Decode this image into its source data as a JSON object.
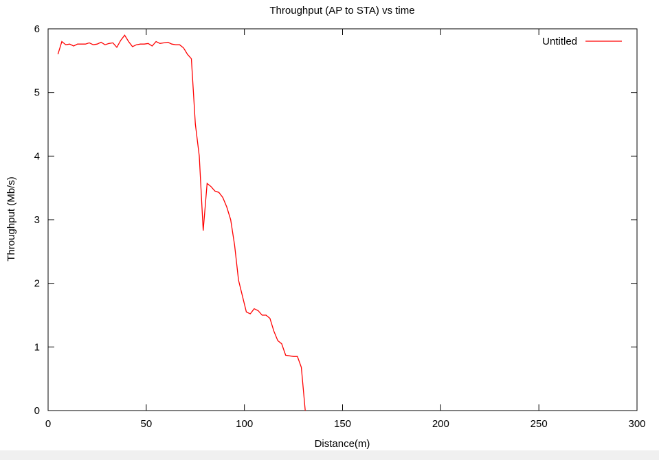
{
  "chart_data": {
    "type": "line",
    "title": "Throughput (AP to STA) vs time",
    "xlabel": "Distance(m)",
    "ylabel": "Throughput (Mb/s)",
    "xlim": [
      0,
      300
    ],
    "ylim": [
      0,
      6
    ],
    "xticks": [
      0,
      50,
      100,
      150,
      200,
      250,
      300
    ],
    "yticks": [
      0,
      1,
      2,
      3,
      4,
      5,
      6
    ],
    "grid": false,
    "legend": "top-right",
    "series_color": "#ff0000",
    "series": [
      {
        "name": "Untitled",
        "x": [
          5,
          7,
          9,
          11,
          13,
          15,
          17,
          19,
          21,
          23,
          25,
          27,
          29,
          31,
          33,
          35,
          37,
          39,
          41,
          43,
          45,
          47,
          49,
          51,
          53,
          55,
          57,
          59,
          61,
          63,
          65,
          67,
          69,
          71,
          73,
          75,
          77,
          79,
          81,
          83,
          85,
          87,
          89,
          91,
          93,
          95,
          97,
          99,
          101,
          103,
          105,
          107,
          109,
          111,
          113,
          115,
          117,
          119,
          121,
          123,
          125,
          127,
          129,
          131
        ],
        "y": [
          5.6,
          5.8,
          5.75,
          5.76,
          5.73,
          5.76,
          5.76,
          5.76,
          5.78,
          5.75,
          5.76,
          5.79,
          5.75,
          5.77,
          5.78,
          5.71,
          5.82,
          5.9,
          5.8,
          5.72,
          5.75,
          5.76,
          5.76,
          5.77,
          5.73,
          5.8,
          5.77,
          5.78,
          5.79,
          5.76,
          5.75,
          5.75,
          5.7,
          5.6,
          5.53,
          4.5,
          4.0,
          2.83,
          3.57,
          3.52,
          3.45,
          3.43,
          3.35,
          3.2,
          3.0,
          2.6,
          2.05,
          1.8,
          1.55,
          1.52,
          1.6,
          1.57,
          1.5,
          1.5,
          1.45,
          1.25,
          1.1,
          1.05,
          0.87,
          0.86,
          0.85,
          0.85,
          0.68,
          0.0
        ]
      }
    ]
  }
}
